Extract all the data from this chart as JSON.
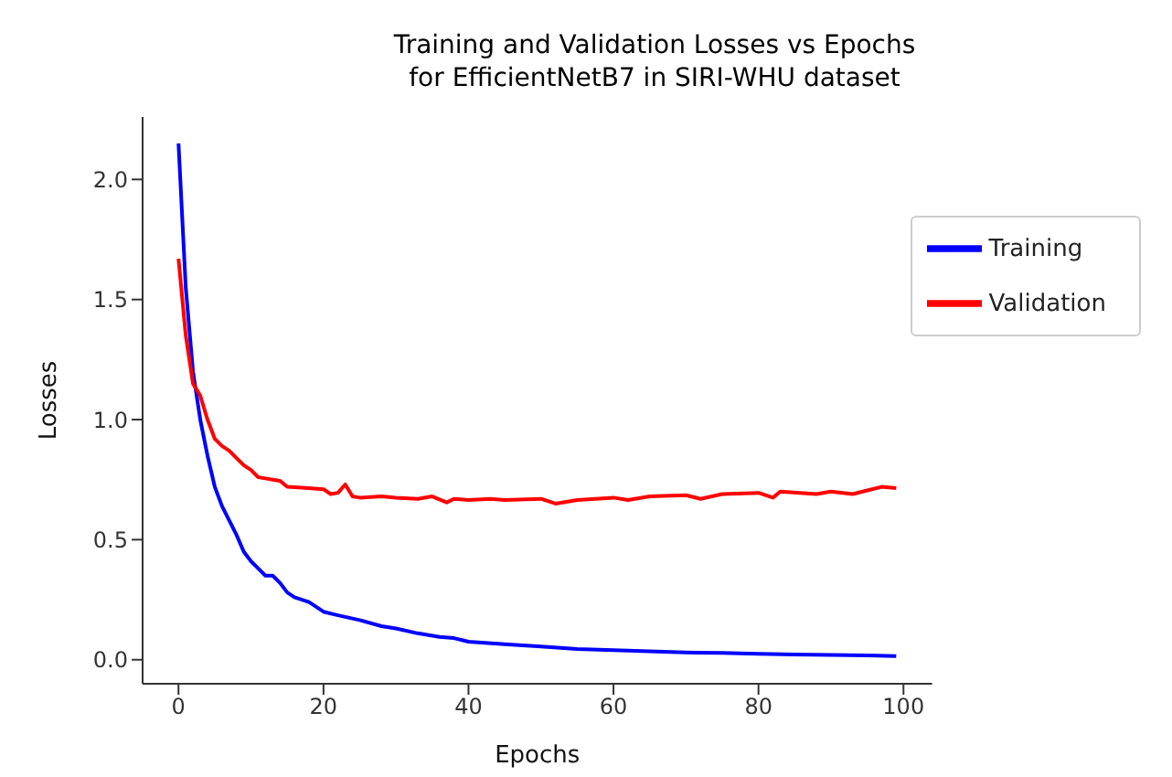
{
  "chart_data": {
    "type": "line",
    "title": "Training and Validation Losses vs Epochs\nfor EfficientNetB7 in SIRI-WHU dataset",
    "xlabel": "Epochs",
    "ylabel": "Losses",
    "xlim": [
      -4.95,
      103.95
    ],
    "xticks": [
      0,
      20,
      40,
      60,
      80,
      100
    ],
    "ylim": [
      -0.1,
      2.26
    ],
    "yticks": [
      {
        "value": 0,
        "label": "0.0"
      },
      0.5,
      {
        "value": 1,
        "label": "1.0"
      },
      1.5,
      {
        "value": 2,
        "label": "2.0"
      }
    ],
    "grid": false,
    "legend": "top right",
    "line_style": "solid",
    "marker": "none",
    "series": [
      {
        "name": "Training",
        "color": "#0000ff",
        "x": [
          0,
          1,
          2,
          3,
          4,
          5,
          6,
          7,
          8,
          9,
          10,
          11,
          12,
          13,
          14,
          15,
          16,
          18,
          20,
          22,
          25,
          28,
          30,
          33,
          36,
          38,
          40,
          45,
          50,
          55,
          60,
          65,
          70,
          75,
          80,
          85,
          90,
          95,
          99
        ],
        "values": [
          2.15,
          1.55,
          1.2,
          1.0,
          0.85,
          0.72,
          0.64,
          0.58,
          0.52,
          0.45,
          0.41,
          0.38,
          0.35,
          0.35,
          0.32,
          0.28,
          0.26,
          0.24,
          0.2,
          0.185,
          0.165,
          0.14,
          0.13,
          0.11,
          0.095,
          0.09,
          0.075,
          0.065,
          0.055,
          0.045,
          0.04,
          0.035,
          0.03,
          0.028,
          0.025,
          0.022,
          0.02,
          0.018,
          0.015
        ]
      },
      {
        "name": "Validation",
        "color": "#ff0000",
        "x": [
          0,
          1,
          2,
          3,
          4,
          5,
          6,
          7,
          8,
          9,
          10,
          11,
          12,
          13,
          14,
          15,
          18,
          20,
          21,
          22,
          23,
          24,
          25,
          28,
          30,
          33,
          35,
          37,
          38,
          40,
          43,
          45,
          50,
          52,
          55,
          60,
          62,
          65,
          70,
          72,
          75,
          80,
          82,
          83,
          88,
          90,
          93,
          95,
          97,
          99
        ],
        "values": [
          1.67,
          1.35,
          1.15,
          1.1,
          1.0,
          0.92,
          0.89,
          0.87,
          0.84,
          0.81,
          0.79,
          0.76,
          0.755,
          0.75,
          0.745,
          0.72,
          0.715,
          0.71,
          0.69,
          0.695,
          0.73,
          0.68,
          0.675,
          0.68,
          0.675,
          0.67,
          0.68,
          0.655,
          0.67,
          0.665,
          0.67,
          0.665,
          0.67,
          0.65,
          0.665,
          0.675,
          0.665,
          0.68,
          0.685,
          0.67,
          0.69,
          0.695,
          0.675,
          0.7,
          0.69,
          0.7,
          0.69,
          0.705,
          0.72,
          0.715
        ]
      }
    ]
  }
}
